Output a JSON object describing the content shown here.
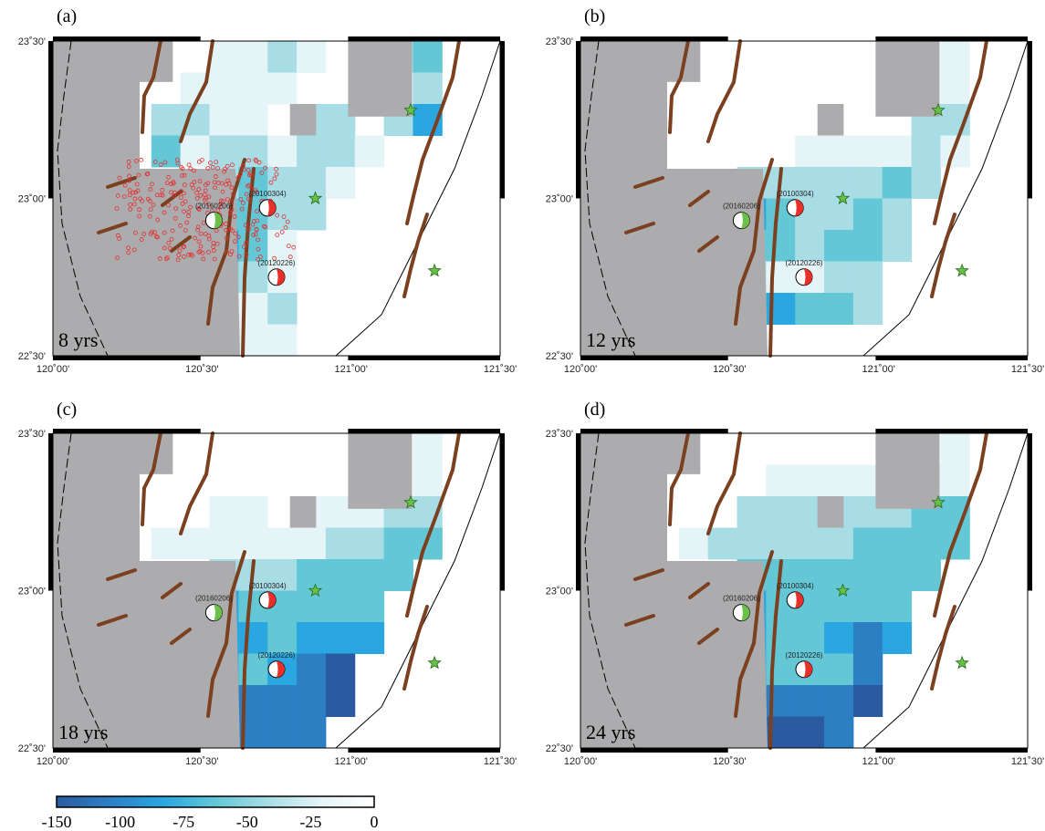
{
  "figure": {
    "panels": [
      {
        "label": "(a)",
        "duration": "8 yrs",
        "show_seismicity": true,
        "grid": [
          "GGG.......",
          "GG...#.G..",
          "G....G...#",
          "G.........",
          "GGG.......",
          "GGG.......",
          "GGG.......",
          "GGG.......",
          "GGG.......",
          "GGG......."
        ]
      },
      {
        "label": "(b)",
        "duration": "12 yrs",
        "show_seismicity": false,
        "grid": [
          "GGG.......",
          "GG...#.G..",
          "G....G...#",
          "G.........",
          "GGG.......",
          "GGG.......",
          "GGG.......",
          "GGG.......",
          "GGG.......",
          "GGG......."
        ]
      },
      {
        "label": "(c)",
        "duration": "18 yrs",
        "show_seismicity": false,
        "grid": [
          "GGG.......",
          "GG.......",
          "G........",
          "G.........",
          "GGG.......",
          "GGG.......",
          "GGG.......",
          "GGG.......",
          "GGG.......",
          "GGG......."
        ]
      },
      {
        "label": "(d)",
        "duration": "24 yrs",
        "show_seismicity": false,
        "grid": [
          "GGG.......",
          "GG.......",
          "G........",
          "G.........",
          "GGG.......",
          "GGG.......",
          "GGG.......",
          "GGG.......",
          "GGG.......",
          "GGG......."
        ]
      }
    ],
    "axis": {
      "x_ticks": [
        "120˚00'",
        "120˚30'",
        "121˚00'",
        "121˚30'"
      ],
      "y_ticks": [
        "23˚30'",
        "23˚00'",
        "22˚30'"
      ]
    },
    "events": [
      {
        "id": "20160206",
        "lon": 120.54,
        "lat": 22.93,
        "color": "#6cc04a"
      },
      {
        "id": "20100304",
        "lon": 120.72,
        "lat": 22.97,
        "color": "#e8302a"
      },
      {
        "id": "20120226",
        "lon": 120.75,
        "lat": 22.75,
        "color": "#e8302a"
      }
    ],
    "stars": [
      {
        "lon": 120.88,
        "lat": 23.0
      },
      {
        "lon": 121.2,
        "lat": 23.28
      },
      {
        "lon": 121.28,
        "lat": 22.77
      }
    ],
    "colorbar": {
      "ticks": [
        "-150",
        "-100",
        "-75",
        "-50",
        "-25",
        "0"
      ],
      "colors": [
        "#2c5aa0",
        "#2d7fc4",
        "#2aa6e0",
        "#63c7d6",
        "#a8dde6",
        "#e4f4f7",
        "#ffffff"
      ]
    },
    "colors": {
      "land_gray": "#acacae",
      "fault": "#7a4020",
      "star": "#66c04a"
    }
  }
}
